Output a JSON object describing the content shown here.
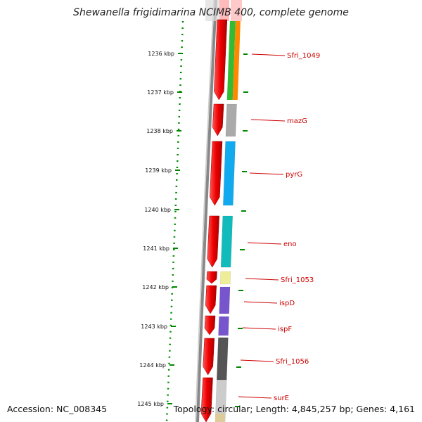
{
  "title": "Shewanella frigidimarina NCIMB 400, complete genome",
  "footer": {
    "accession": "Accession: NC_008345",
    "topology": "Topology: circular; Length: 4,845,257 bp; Genes: 4,161"
  },
  "ticks": [
    "1236 kbp",
    "1237 kbp",
    "1238 kbp",
    "1239 kbp",
    "1240 kbp",
    "1241 kbp",
    "1242 kbp",
    "1243 kbp",
    "1244 kbp",
    "1245 kbp"
  ],
  "genes": [
    {
      "name": "Sfri_1049",
      "color": "#33bb33",
      "color2": "#ff8800"
    },
    {
      "name": "mazG",
      "color": "#aaaaaa"
    },
    {
      "name": "pyrG",
      "color": "#11aaee"
    },
    {
      "name": "eno",
      "color": "#11bbbb"
    },
    {
      "name": "Sfri_1053",
      "color": "#eeee99"
    },
    {
      "name": "ispD",
      "color": "#7755cc"
    },
    {
      "name": "ispF",
      "color": "#7755cc"
    },
    {
      "name": "Sfri_1056",
      "color": "#555555"
    },
    {
      "name": "surE",
      "color": "#cccccc"
    }
  ],
  "colors": {
    "strand": "#ee0000",
    "tick": "#008800",
    "label": "#cc0000",
    "backbone": "#888888"
  }
}
